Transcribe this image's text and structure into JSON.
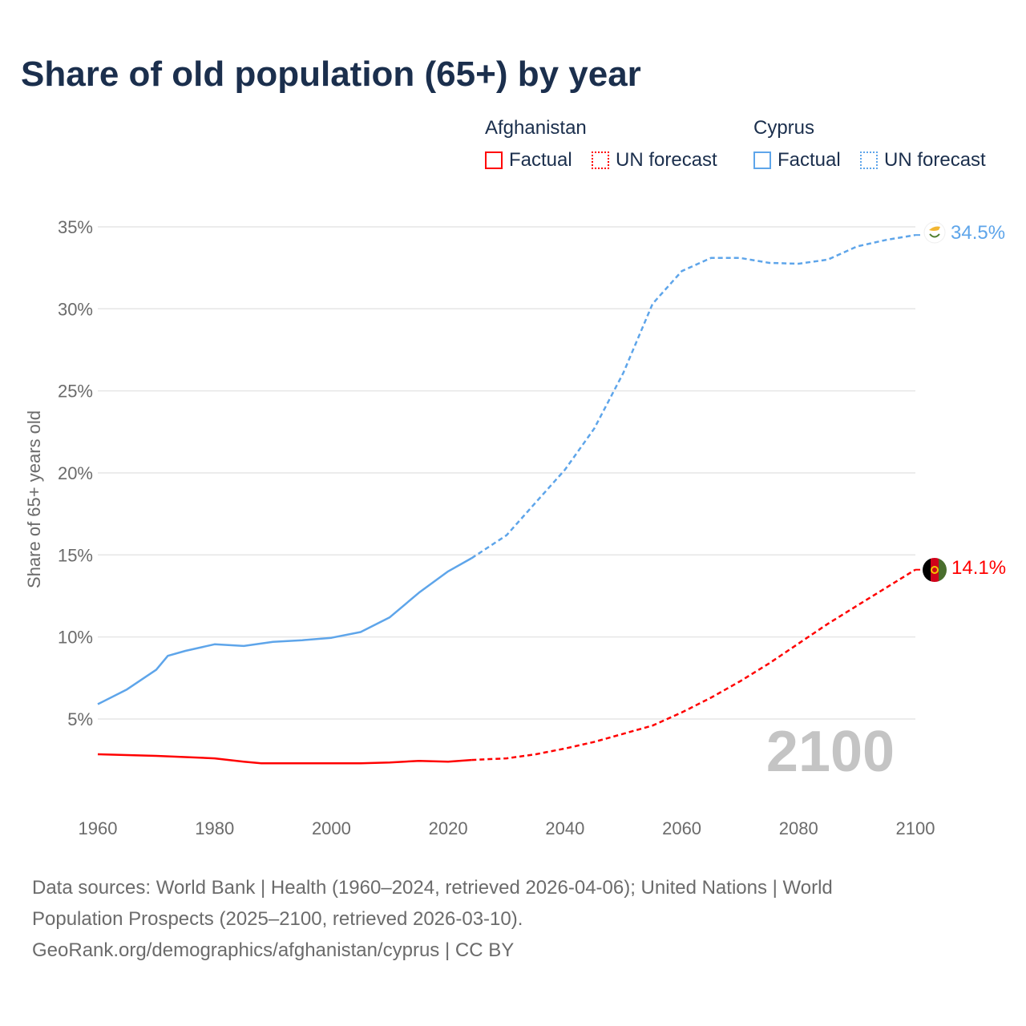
{
  "title": "Share of old population (65+) by year",
  "legend": {
    "groups": [
      {
        "country": "Afghanistan",
        "color": "#ff0000",
        "factual": "Factual",
        "forecast": "UN forecast"
      },
      {
        "country": "Cyprus",
        "color": "#5ea5ea",
        "factual": "Factual",
        "forecast": "UN forecast"
      }
    ]
  },
  "year_label": "2100",
  "footer": {
    "line1": "Data sources: World Bank | Health (1960–2024, retrieved 2026-04-06); United Nations | World",
    "line2": "Population Prospects (2025–2100, retrieved 2026-03-10).",
    "line3": "GeoRank.org/demographics/afghanistan/cyprus | CC BY"
  },
  "chart_data": {
    "type": "line",
    "title": "Share of old population (65+) by year",
    "xlabel": "",
    "ylabel": "Share of 65+ years old",
    "xlim": [
      1960,
      2100
    ],
    "ylim": [
      0,
      35
    ],
    "xticks": [
      "1960",
      "1980",
      "2000",
      "2020",
      "2040",
      "2060",
      "2080",
      "2100"
    ],
    "yticks": [
      "5%",
      "10%",
      "15%",
      "20%",
      "25%",
      "30%",
      "35%"
    ],
    "grid": true,
    "legend_position": "top-right",
    "series": [
      {
        "name": "Afghanistan",
        "color": "#ff0000",
        "end_label": "14.1%",
        "factual": {
          "x": [
            1960,
            1970,
            1980,
            1985,
            1988,
            1995,
            2000,
            2005,
            2010,
            2015,
            2020,
            2024
          ],
          "y": [
            2.85,
            2.75,
            2.6,
            2.4,
            2.3,
            2.3,
            2.3,
            2.3,
            2.35,
            2.45,
            2.4,
            2.5
          ]
        },
        "forecast": {
          "x": [
            2024,
            2030,
            2035,
            2040,
            2045,
            2050,
            2055,
            2060,
            2065,
            2070,
            2075,
            2080,
            2085,
            2090,
            2095,
            2100
          ],
          "y": [
            2.5,
            2.6,
            2.85,
            3.2,
            3.6,
            4.1,
            4.6,
            5.4,
            6.3,
            7.3,
            8.4,
            9.6,
            10.8,
            11.9,
            13.0,
            14.1
          ]
        }
      },
      {
        "name": "Cyprus",
        "color": "#5ea5ea",
        "end_label": "34.5%",
        "factual": {
          "x": [
            1960,
            1965,
            1970,
            1972,
            1975,
            1980,
            1985,
            1990,
            1995,
            2000,
            2005,
            2010,
            2015,
            2020,
            2024
          ],
          "y": [
            5.9,
            6.8,
            8.0,
            8.85,
            9.15,
            9.55,
            9.45,
            9.7,
            9.8,
            9.95,
            10.3,
            11.2,
            12.7,
            14.0,
            14.8
          ]
        },
        "forecast": {
          "x": [
            2024,
            2030,
            2035,
            2040,
            2045,
            2050,
            2055,
            2060,
            2065,
            2070,
            2075,
            2080,
            2085,
            2090,
            2095,
            2100
          ],
          "y": [
            14.8,
            16.2,
            18.2,
            20.2,
            22.7,
            26.1,
            30.3,
            32.3,
            33.1,
            33.1,
            32.8,
            32.75,
            33.0,
            33.8,
            34.2,
            34.5
          ]
        }
      }
    ]
  }
}
